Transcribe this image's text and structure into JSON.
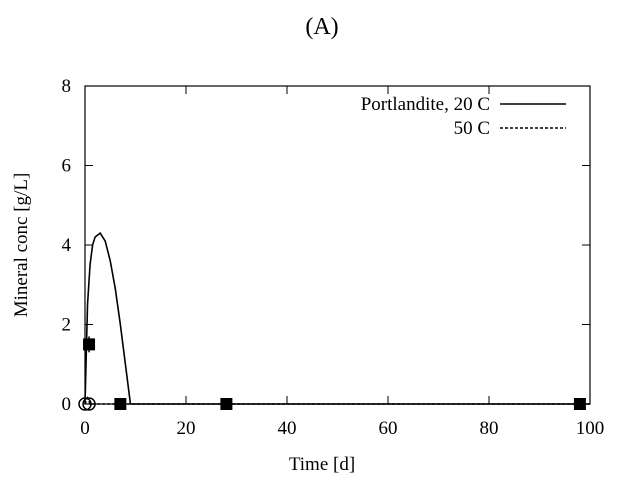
{
  "chart_data": {
    "type": "line",
    "title": "(A)",
    "xlabel": "Time [d]",
    "ylabel": "Mineral conc [g/L]",
    "xlim": [
      0,
      100
    ],
    "xticks": [
      0,
      20,
      40,
      60,
      80,
      100
    ],
    "ylim": [
      0,
      8
    ],
    "yticks": [
      0,
      2,
      4,
      6,
      8
    ],
    "legend": "top-right",
    "series": [
      {
        "name": "Portlandite, 20 C",
        "color": "#000000",
        "style": "solid",
        "x": [
          0,
          0.5,
          1,
          1.5,
          2,
          3,
          4,
          5,
          6,
          7,
          8,
          9,
          100
        ],
        "values": [
          0,
          2.5,
          3.5,
          4.0,
          4.2,
          4.3,
          4.1,
          3.6,
          2.9,
          2.0,
          1.0,
          0,
          0
        ]
      },
      {
        "name": "50 C",
        "color": "#000000",
        "style": "dashed",
        "x": [
          0,
          0.5,
          1,
          2,
          100
        ],
        "values": [
          0,
          0.15,
          0,
          0,
          0
        ]
      },
      {
        "color": "#000000",
        "style": "points",
        "marker": "square",
        "x": [
          0.8,
          7,
          28,
          98
        ],
        "values": [
          1.5,
          0,
          0,
          0
        ],
        "errors": [
          0.2,
          null,
          null,
          null
        ]
      },
      {
        "color": "#000000",
        "style": "points",
        "marker": "open-circle",
        "x": [
          0,
          0.8
        ],
        "values": [
          0,
          0
        ]
      }
    ]
  }
}
